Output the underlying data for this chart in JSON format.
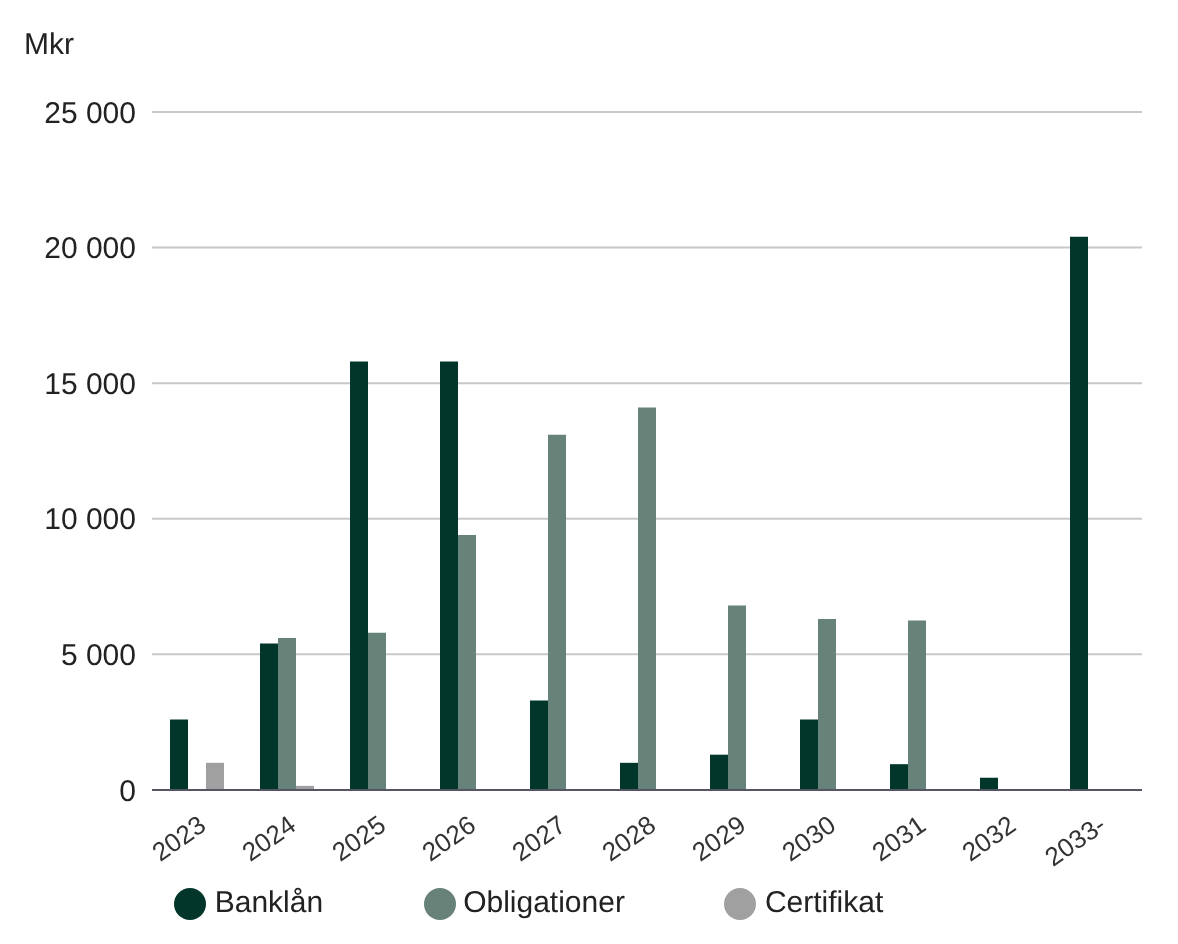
{
  "chart_data": {
    "type": "bar",
    "ylabel": "Mkr",
    "categories": [
      "2023",
      "2024",
      "2025",
      "2026",
      "2027",
      "2028",
      "2029",
      "2030",
      "2031",
      "2032",
      "2033-"
    ],
    "series": [
      {
        "name": "Banklån",
        "color": "#02362a",
        "values": [
          2600,
          5400,
          15800,
          15800,
          3300,
          1000,
          1300,
          2600,
          950,
          450,
          20400
        ]
      },
      {
        "name": "Obligationer",
        "color": "#668279",
        "values": [
          null,
          5600,
          5800,
          9400,
          13100,
          14100,
          6800,
          6300,
          6250,
          null,
          null
        ]
      },
      {
        "name": "Certifikat",
        "color": "#a0a0a0",
        "values": [
          1000,
          150,
          null,
          null,
          null,
          null,
          null,
          null,
          null,
          null,
          null
        ]
      }
    ],
    "ylim": [
      0,
      25000
    ],
    "yticks": [
      {
        "value": 0,
        "label": "0"
      },
      {
        "value": 5000,
        "label": "5 000"
      },
      {
        "value": 10000,
        "label": "10 000"
      },
      {
        "value": 15000,
        "label": "15 000"
      },
      {
        "value": 20000,
        "label": "20 000"
      },
      {
        "value": 25000,
        "label": "25 000"
      }
    ],
    "grid": "y",
    "legend": "bottom"
  }
}
